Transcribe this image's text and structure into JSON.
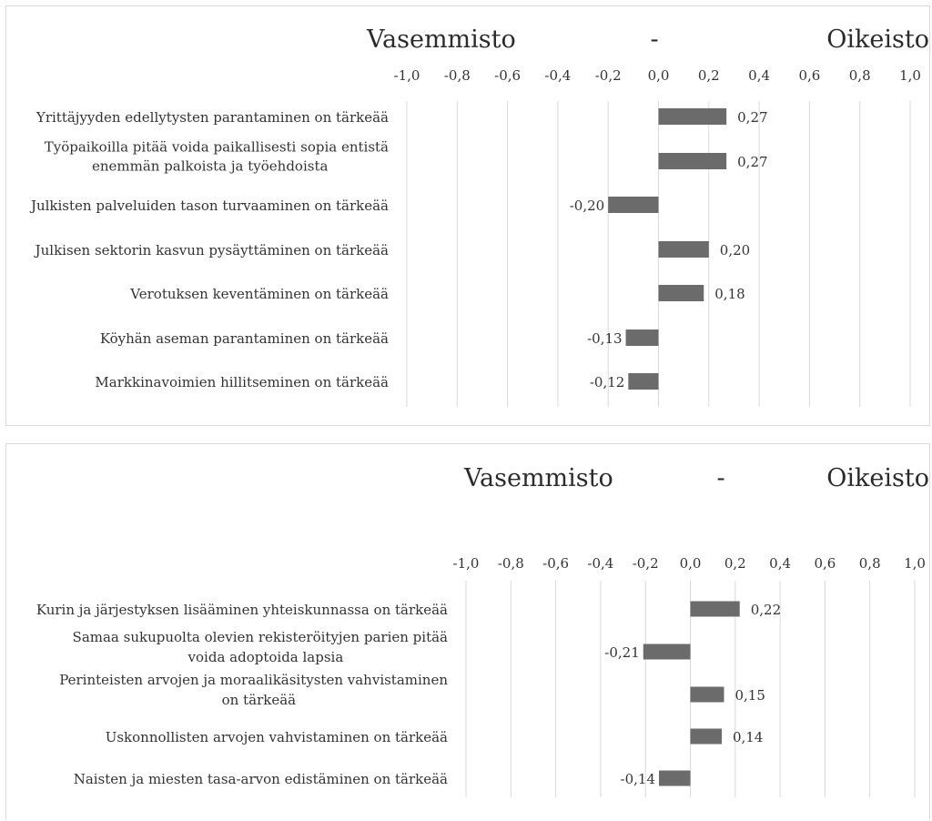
{
  "chart_data": [
    {
      "type": "bar",
      "orientation": "horizontal",
      "header": {
        "left": "Vasemmisto",
        "middle": "-",
        "right": "Oikeisto"
      },
      "xlim": [
        -1.0,
        1.0
      ],
      "ticks": [
        "-1,0",
        "-0,8",
        "-0,6",
        "-0,4",
        "-0,2",
        "0,0",
        "0,2",
        "0,4",
        "0,6",
        "0,8",
        "1,0"
      ],
      "grid": true,
      "categories": [
        [
          "Yrittäjyyden edellytysten parantaminen on tärkeää"
        ],
        [
          "Työpaikoilla pitää voida paikallisesti sopia entistä",
          "enemmän palkoista ja työehdoista"
        ],
        [
          "Julkisten palveluiden tason turvaaminen on tärkeää"
        ],
        [
          "Julkisen sektorin kasvun pysäyttäminen on tärkeää"
        ],
        [
          "Verotuksen keventäminen on tärkeää"
        ],
        [
          "Köyhän aseman parantaminen on tärkeää"
        ],
        [
          "Markkinavoimien hillitseminen on tärkeää"
        ]
      ],
      "values": [
        0.27,
        0.27,
        -0.2,
        0.2,
        0.18,
        -0.13,
        -0.12
      ],
      "labels": [
        "0,27",
        "0,27",
        "-0,20",
        "0,20",
        "0,18",
        "-0,13",
        "-0,12"
      ],
      "bar_color": "#6b6b6b"
    },
    {
      "type": "bar",
      "orientation": "horizontal",
      "header": {
        "left": "Vasemmisto",
        "middle": "-",
        "right": "Oikeisto"
      },
      "xlim": [
        -1.0,
        1.0
      ],
      "ticks": [
        "-1,0",
        "-0,8",
        "-0,6",
        "-0,4",
        "-0,2",
        "0,0",
        "0,2",
        "0,4",
        "0,6",
        "0,8",
        "1,0"
      ],
      "grid": true,
      "categories": [
        [
          "Kurin ja järjestyksen lisääminen yhteiskunnassa on tärkeää"
        ],
        [
          "Samaa sukupuolta olevien rekisteröityjen parien pitää",
          "voida adoptoida lapsia"
        ],
        [
          "Perinteisten arvojen ja moraalikäsitysten vahvistaminen",
          "on tärkeää"
        ],
        [
          "Uskonnollisten arvojen vahvistaminen on tärkeää"
        ],
        [
          "Naisten ja miesten tasa-arvon edistäminen on tärkeää"
        ]
      ],
      "values": [
        0.22,
        -0.21,
        0.15,
        0.14,
        -0.14
      ],
      "labels": [
        "0,22",
        "-0,21",
        "0,15",
        "0,14",
        "-0,14"
      ],
      "bar_color": "#6b6b6b"
    }
  ]
}
